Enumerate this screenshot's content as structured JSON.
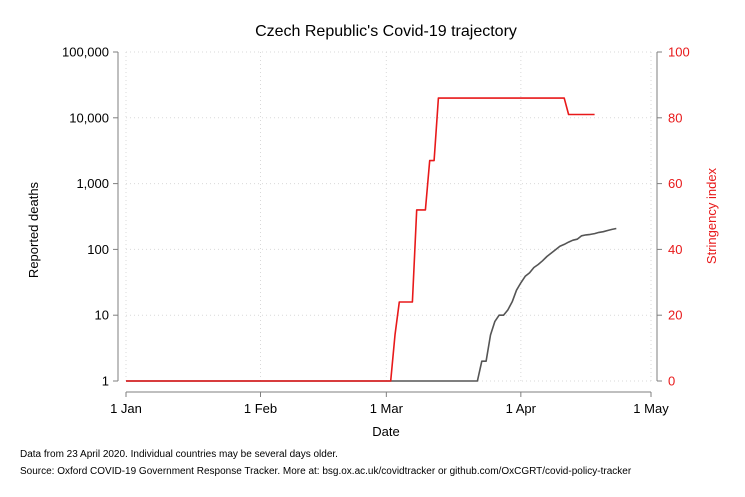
{
  "chart_data": {
    "type": "line",
    "title": "Czech Republic's Covid-19 trajectory",
    "xlabel": "Date",
    "ylabel_left": "Reported deaths",
    "ylabel_right": "Stringency index",
    "x_ticks": [
      {
        "date": "2020-01-01",
        "label": "1 Jan"
      },
      {
        "date": "2020-02-01",
        "label": "1 Feb"
      },
      {
        "date": "2020-03-01",
        "label": "1 Mar"
      },
      {
        "date": "2020-04-01",
        "label": "1 Apr"
      },
      {
        "date": "2020-05-01",
        "label": "1 May"
      }
    ],
    "xlim": [
      "2020-01-01",
      "2020-05-01"
    ],
    "y_left": {
      "scale": "log",
      "ylim": [
        1,
        100000
      ],
      "ticks": [
        {
          "value": 1,
          "label": "1"
        },
        {
          "value": 10,
          "label": "10"
        },
        {
          "value": 100,
          "label": "100"
        },
        {
          "value": 1000,
          "label": "1,000"
        },
        {
          "value": 10000,
          "label": "10,000"
        },
        {
          "value": 100000,
          "label": "100,000"
        }
      ]
    },
    "y_right": {
      "scale": "linear",
      "ylim": [
        0,
        100
      ],
      "ticks": [
        {
          "value": 0,
          "label": "0"
        },
        {
          "value": 20,
          "label": "20"
        },
        {
          "value": 40,
          "label": "40"
        },
        {
          "value": 60,
          "label": "60"
        },
        {
          "value": 80,
          "label": "80"
        },
        {
          "value": 100,
          "label": "100"
        }
      ]
    },
    "grid": true,
    "series": [
      {
        "axis": "left",
        "color": "#555555",
        "points": [
          [
            "2020-01-01",
            1
          ],
          [
            "2020-03-22",
            1
          ],
          [
            "2020-03-23",
            2
          ],
          [
            "2020-03-24",
            2
          ],
          [
            "2020-03-25",
            5
          ],
          [
            "2020-03-26",
            8
          ],
          [
            "2020-03-27",
            10
          ],
          [
            "2020-03-28",
            10
          ],
          [
            "2020-03-29",
            12
          ],
          [
            "2020-03-30",
            16
          ],
          [
            "2020-03-31",
            24
          ],
          [
            "2020-04-01",
            31
          ],
          [
            "2020-04-02",
            39
          ],
          [
            "2020-04-03",
            44
          ],
          [
            "2020-04-04",
            53
          ],
          [
            "2020-04-05",
            59
          ],
          [
            "2020-04-06",
            67
          ],
          [
            "2020-04-07",
            78
          ],
          [
            "2020-04-08",
            88
          ],
          [
            "2020-04-09",
            99
          ],
          [
            "2020-04-10",
            112
          ],
          [
            "2020-04-11",
            119
          ],
          [
            "2020-04-12",
            129
          ],
          [
            "2020-04-13",
            138
          ],
          [
            "2020-04-14",
            143
          ],
          [
            "2020-04-15",
            161
          ],
          [
            "2020-04-16",
            166
          ],
          [
            "2020-04-17",
            169
          ],
          [
            "2020-04-18",
            174
          ],
          [
            "2020-04-19",
            181
          ],
          [
            "2020-04-20",
            186
          ],
          [
            "2020-04-21",
            194
          ],
          [
            "2020-04-22",
            201
          ],
          [
            "2020-04-23",
            208
          ]
        ]
      },
      {
        "axis": "right",
        "color": "#e8191a",
        "points": [
          [
            "2020-01-01",
            0
          ],
          [
            "2020-03-02",
            0
          ],
          [
            "2020-03-03",
            14
          ],
          [
            "2020-03-04",
            24
          ],
          [
            "2020-03-07",
            24
          ],
          [
            "2020-03-08",
            52
          ],
          [
            "2020-03-10",
            52
          ],
          [
            "2020-03-11",
            67
          ],
          [
            "2020-03-12",
            67
          ],
          [
            "2020-03-13",
            86
          ],
          [
            "2020-04-11",
            86
          ],
          [
            "2020-04-12",
            81
          ],
          [
            "2020-04-18",
            81
          ]
        ]
      }
    ]
  },
  "notes": {
    "line1": "Data from 23 April 2020. Individual countries may be several days older.",
    "line2": "Source: Oxford COVID-19 Government Response Tracker. More at: bsg.ox.ac.uk/covidtracker or github.com/OxCGRT/covid-policy-tracker"
  }
}
